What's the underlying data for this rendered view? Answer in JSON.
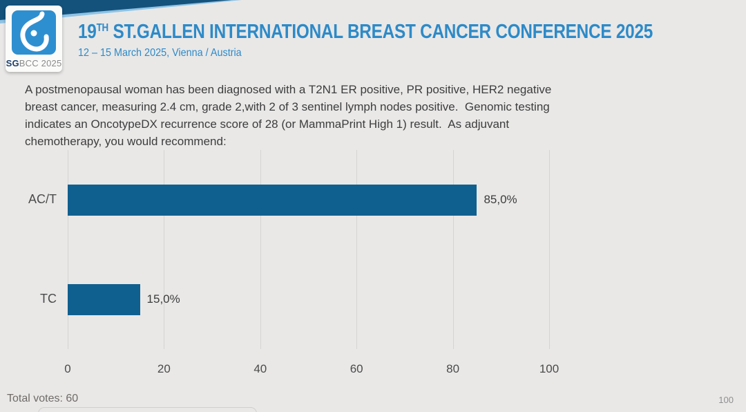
{
  "header": {
    "logo": {
      "icon": "sgbcc-breast-icon",
      "sg": "SG",
      "rest": "BCC 2025"
    },
    "title_number": "19",
    "title_sup": "TH",
    "title_rest": " ST.GALLEN INTERNATIONAL BREAST CANCER CONFERENCE 2025",
    "subtitle": "12 – 15 March 2025, Vienna / Austria"
  },
  "question": "A postmenopausal woman has been diagnosed with a T2N1 ER positive, PR positive, HER2 negative\nbreast cancer, measuring 2.4 cm, grade 2,with 2 of 3 sentinel lymph nodes positive.  Genomic testing\nindicates an OncotypeDX recurrence score of 28 (or MammaPrint High 1) result.  As adjuvant\nchemotherapy, you would recommend:",
  "chart_data": {
    "type": "bar",
    "orientation": "horizontal",
    "title": "",
    "categories": [
      "AC/T",
      "TC"
    ],
    "values": [
      85.0,
      15.0
    ],
    "value_labels": [
      "85,0%",
      "15,0%"
    ],
    "xticks": [
      0,
      20,
      40,
      60,
      80,
      100
    ],
    "xtick_labels": [
      "0",
      "20",
      "40",
      "60",
      "80",
      "100"
    ],
    "xlim": [
      0,
      100
    ],
    "grid": true,
    "legend_position": "none",
    "bar_color": "#10608f",
    "grid_color": "#d6d4d1"
  },
  "footer": {
    "total_votes": "Total votes: 60",
    "page_number": "100"
  },
  "colors": {
    "background": "#e9e8e7",
    "band_dark": "#14527c",
    "band_light": "#8fc3e4",
    "accent_blue": "#2d8ac8",
    "bar_blue": "#10608f",
    "question_text": "#3d3d3d"
  }
}
